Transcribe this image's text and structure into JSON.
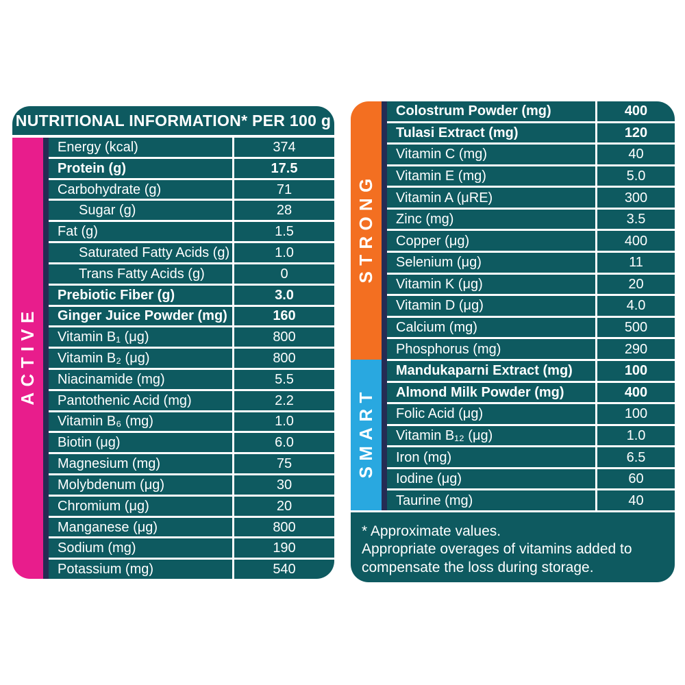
{
  "colors": {
    "teal": "#0E5A60",
    "pink": "#E81D8C",
    "orange": "#F36F21",
    "blue": "#29A8E0",
    "navy": "#252C54",
    "text": "#FFFFFF"
  },
  "left_panel": {
    "header": "NUTRITIONAL INFORMATION* PER 100 g",
    "band_label": "ACTIVE",
    "band_color": "#E81D8C",
    "rows": [
      {
        "label": "Energy (kcal)",
        "value": "374"
      },
      {
        "label": "Protein (g)",
        "value": "17.5",
        "bold": true
      },
      {
        "label": "Carbohydrate (g)",
        "value": "71"
      },
      {
        "label": "Sugar (g)",
        "value": "28",
        "indent": true
      },
      {
        "label": "Fat (g)",
        "value": "1.5"
      },
      {
        "label": "Saturated Fatty Acids (g)",
        "value": "1.0",
        "indent": true
      },
      {
        "label": "Trans Fatty Acids (g)",
        "value": "0",
        "indent": true
      },
      {
        "label": "Prebiotic Fiber (g)",
        "value": "3.0",
        "bold": true
      },
      {
        "label": "Ginger Juice Powder (mg)",
        "value": "160",
        "bold": true
      },
      {
        "label": "Vitamin B₁ (μg)",
        "value": "800"
      },
      {
        "label": "Vitamin B₂ (μg)",
        "value": "800"
      },
      {
        "label": "Niacinamide (mg)",
        "value": "5.5"
      },
      {
        "label": "Pantothenic Acid (mg)",
        "value": "2.2"
      },
      {
        "label": "Vitamin B₆ (mg)",
        "value": "1.0"
      },
      {
        "label": "Biotin (μg)",
        "value": "6.0"
      },
      {
        "label": "Magnesium (mg)",
        "value": "75"
      },
      {
        "label": "Molybdenum (μg)",
        "value": "30"
      },
      {
        "label": "Chromium (μg)",
        "value": "20"
      },
      {
        "label": "Manganese (μg)",
        "value": "800"
      },
      {
        "label": "Sodium (mg)",
        "value": "190"
      },
      {
        "label": "Potassium (mg)",
        "value": "540"
      }
    ]
  },
  "right_panel": {
    "sections": [
      {
        "band_label": "STRONG",
        "band_color": "#F36F21",
        "rows": [
          {
            "label": "Colostrum Powder (mg)",
            "value": "400",
            "bold": true
          },
          {
            "label": "Tulasi Extract (mg)",
            "value": "120",
            "bold": true
          },
          {
            "label": "Vitamin C (mg)",
            "value": "40"
          },
          {
            "label": "Vitamin E (mg)",
            "value": "5.0"
          },
          {
            "label": "Vitamin A (μRE)",
            "value": "300"
          },
          {
            "label": "Zinc (mg)",
            "value": "3.5"
          },
          {
            "label": "Copper (μg)",
            "value": "400"
          },
          {
            "label": "Selenium (μg)",
            "value": "11"
          },
          {
            "label": "Vitamin K (μg)",
            "value": "20"
          },
          {
            "label": "Vitamin D (μg)",
            "value": "4.0"
          },
          {
            "label": "Calcium (mg)",
            "value": "500"
          },
          {
            "label": "Phosphorus (mg)",
            "value": "290"
          }
        ]
      },
      {
        "band_label": "SMART",
        "band_color": "#29A8E0",
        "rows": [
          {
            "label": "Mandukaparni Extract (mg)",
            "value": "100",
            "bold": true
          },
          {
            "label": "Almond Milk Powder (mg)",
            "value": "400",
            "bold": true
          },
          {
            "label": "Folic Acid (μg)",
            "value": "100"
          },
          {
            "label": "Vitamin B₁₂ (μg)",
            "value": "1.0"
          },
          {
            "label": "Iron (mg)",
            "value": "6.5"
          },
          {
            "label": "Iodine (μg)",
            "value": "60"
          },
          {
            "label": "Taurine (mg)",
            "value": "40"
          }
        ]
      }
    ],
    "footnote_lines": [
      "* Approximate values.",
      "Appropriate overages of vitamins added to",
      "compensate the loss during storage."
    ]
  }
}
